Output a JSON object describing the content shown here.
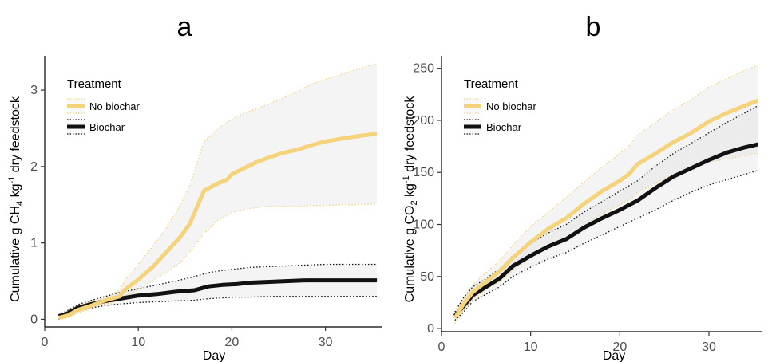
{
  "chart_data": [
    {
      "type": "line",
      "panel": "a",
      "xlabel": "Day",
      "ylabel_parts": [
        "Cumulative g CH",
        "4",
        " kg",
        "-1",
        " dry feedstock"
      ],
      "xlim": [
        0,
        36
      ],
      "ylim": [
        -0.1,
        3.45
      ],
      "xticks": [
        0,
        10,
        20,
        30
      ],
      "yticks": [
        0,
        1,
        2,
        3
      ],
      "grid": false,
      "legend": {
        "title": "Treatment",
        "position": "top-left",
        "entries": [
          "No biochar",
          "Biochar"
        ]
      },
      "series": [
        {
          "name": "No biochar",
          "color": "#f5d37a",
          "x": [
            1.5,
            2.5,
            3.5,
            5,
            6.5,
            8,
            8.5,
            10,
            11.5,
            13,
            14.5,
            15.5,
            17,
            18.5,
            19.5,
            20,
            21,
            22.5,
            24,
            25.5,
            27,
            28.5,
            30,
            31.5,
            33,
            35.5
          ],
          "y": [
            0.02,
            0.05,
            0.12,
            0.18,
            0.25,
            0.3,
            0.38,
            0.52,
            0.68,
            0.88,
            1.08,
            1.25,
            1.68,
            1.78,
            1.83,
            1.9,
            1.96,
            2.05,
            2.12,
            2.18,
            2.22,
            2.28,
            2.33,
            2.36,
            2.39,
            2.43
          ],
          "lower": [
            0.0,
            0.02,
            0.08,
            0.14,
            0.2,
            0.24,
            0.28,
            0.4,
            0.5,
            0.62,
            0.74,
            0.88,
            1.12,
            1.3,
            1.36,
            1.4,
            1.43,
            1.46,
            1.48,
            1.48,
            1.48,
            1.49,
            1.49,
            1.5,
            1.5,
            1.51
          ],
          "upper": [
            0.05,
            0.1,
            0.18,
            0.24,
            0.3,
            0.38,
            0.5,
            0.72,
            0.95,
            1.2,
            1.5,
            1.75,
            2.32,
            2.5,
            2.58,
            2.62,
            2.68,
            2.75,
            2.82,
            2.9,
            2.98,
            3.08,
            3.14,
            3.2,
            3.26,
            3.35
          ]
        },
        {
          "name": "Biochar",
          "color": "#111111",
          "x": [
            1.5,
            2.5,
            3.5,
            5,
            6.5,
            8,
            10,
            12,
            14,
            16,
            17.5,
            19,
            20.5,
            22,
            24,
            26,
            28,
            30,
            32,
            34,
            35.5
          ],
          "y": [
            0.04,
            0.08,
            0.15,
            0.2,
            0.24,
            0.27,
            0.31,
            0.33,
            0.36,
            0.38,
            0.43,
            0.45,
            0.46,
            0.48,
            0.49,
            0.5,
            0.51,
            0.51,
            0.51,
            0.51,
            0.51
          ],
          "lower": [
            0.0,
            0.05,
            0.11,
            0.15,
            0.18,
            0.2,
            0.22,
            0.23,
            0.24,
            0.25,
            0.27,
            0.28,
            0.29,
            0.29,
            0.3,
            0.3,
            0.3,
            0.3,
            0.3,
            0.3,
            0.3
          ],
          "upper": [
            0.06,
            0.12,
            0.19,
            0.25,
            0.3,
            0.35,
            0.4,
            0.45,
            0.5,
            0.56,
            0.61,
            0.64,
            0.66,
            0.68,
            0.69,
            0.7,
            0.71,
            0.72,
            0.72,
            0.72,
            0.72
          ]
        }
      ]
    },
    {
      "type": "line",
      "panel": "b",
      "xlabel": "Day",
      "ylabel_parts": [
        "Cumulative g CO",
        "2",
        " kg",
        "-1",
        " dry feedstock"
      ],
      "xlim": [
        0,
        36
      ],
      "ylim": [
        -3,
        262
      ],
      "xticks": [
        0,
        10,
        20,
        30
      ],
      "yticks": [
        0,
        50,
        100,
        150,
        200,
        250
      ],
      "grid": false,
      "legend": {
        "title": "Treatment",
        "position": "top-left",
        "entries": [
          "No biochar",
          "Biochar"
        ]
      },
      "series": [
        {
          "name": "No biochar",
          "color": "#f5d37a",
          "x": [
            1.5,
            2.5,
            3.5,
            5,
            6.5,
            8,
            10,
            12,
            14,
            16,
            18,
            20,
            21,
            22,
            24,
            26,
            28,
            30,
            32,
            34,
            35.5
          ],
          "y": [
            10,
            24,
            35,
            45,
            55,
            68,
            83,
            96,
            106,
            120,
            132,
            142,
            148,
            158,
            168,
            179,
            188,
            199,
            207,
            214,
            219
          ],
          "lower": [
            5,
            18,
            28,
            38,
            45,
            56,
            68,
            80,
            86,
            99,
            110,
            119,
            123,
            131,
            140,
            148,
            155,
            160,
            163,
            166,
            168
          ],
          "upper": [
            15,
            30,
            42,
            54,
            65,
            80,
            98,
            112,
            126,
            141,
            155,
            168,
            175,
            186,
            198,
            210,
            220,
            232,
            240,
            248,
            253
          ]
        },
        {
          "name": "Biochar",
          "color": "#111111",
          "x": [
            1.5,
            2.5,
            3.5,
            5,
            6.5,
            8,
            10,
            12,
            14,
            16,
            18,
            20,
            22,
            24,
            26,
            28,
            30,
            32,
            34,
            35.5
          ],
          "y": [
            12,
            22,
            32,
            40,
            48,
            60,
            70,
            79,
            86,
            97,
            106,
            114,
            123,
            135,
            146,
            154,
            162,
            169,
            174,
            177
          ],
          "lower": [
            8,
            16,
            26,
            33,
            40,
            50,
            59,
            67,
            73,
            82,
            90,
            98,
            106,
            114,
            123,
            131,
            138,
            143,
            148,
            152
          ],
          "upper": [
            16,
            30,
            40,
            48,
            57,
            70,
            82,
            92,
            100,
            112,
            122,
            132,
            142,
            156,
            168,
            178,
            188,
            198,
            207,
            214
          ]
        }
      ]
    }
  ]
}
